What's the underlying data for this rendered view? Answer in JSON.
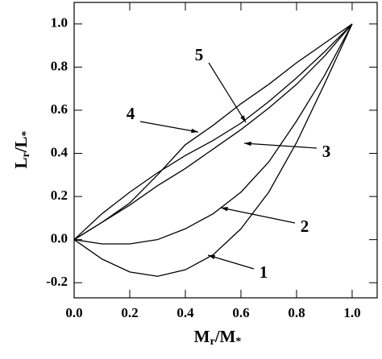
{
  "chart_data": {
    "type": "line",
    "xlabel": [
      "M",
      "r",
      "/M",
      "*"
    ],
    "ylabel": [
      "L",
      "r",
      "/L",
      "*"
    ],
    "x": [
      0,
      0.1,
      0.2,
      0.3,
      0.4,
      0.5,
      0.6,
      0.7,
      0.8,
      0.9,
      1.0
    ],
    "series": [
      {
        "name": "1",
        "color": "#000000",
        "values": [
          0,
          -0.09,
          -0.15,
          -0.17,
          -0.14,
          -0.07,
          0.05,
          0.22,
          0.45,
          0.72,
          1.0
        ]
      },
      {
        "name": "2",
        "color": "#000000",
        "values": [
          0,
          -0.02,
          -0.02,
          0.0,
          0.05,
          0.12,
          0.22,
          0.36,
          0.55,
          0.76,
          1.0
        ]
      },
      {
        "name": "3",
        "color": "#000000",
        "values": [
          0,
          0.08,
          0.16,
          0.25,
          0.33,
          0.42,
          0.51,
          0.61,
          0.72,
          0.85,
          1.0
        ]
      },
      {
        "name": "4",
        "color": "#000000",
        "values": [
          0,
          0.08,
          0.17,
          0.3,
          0.44,
          0.53,
          0.63,
          0.72,
          0.82,
          0.91,
          1.0
        ]
      },
      {
        "name": "5",
        "color": "#000000",
        "values": [
          0,
          0.12,
          0.22,
          0.31,
          0.39,
          0.46,
          0.54,
          0.64,
          0.75,
          0.87,
          1.0
        ]
      }
    ],
    "xlim": [
      0,
      1.09
    ],
    "ylim": [
      -0.27,
      1.1
    ],
    "xticks": [
      {
        "value": 0,
        "label": "0.0"
      },
      0.2,
      0.4,
      0.6,
      0.8,
      {
        "value": 1,
        "label": "1.0"
      }
    ],
    "yticks": [
      -0.2,
      {
        "value": 0,
        "label": "0.0"
      },
      0.2,
      0.4,
      0.6,
      0.8,
      {
        "value": 1,
        "label": "1.0"
      }
    ],
    "grid": false
  }
}
